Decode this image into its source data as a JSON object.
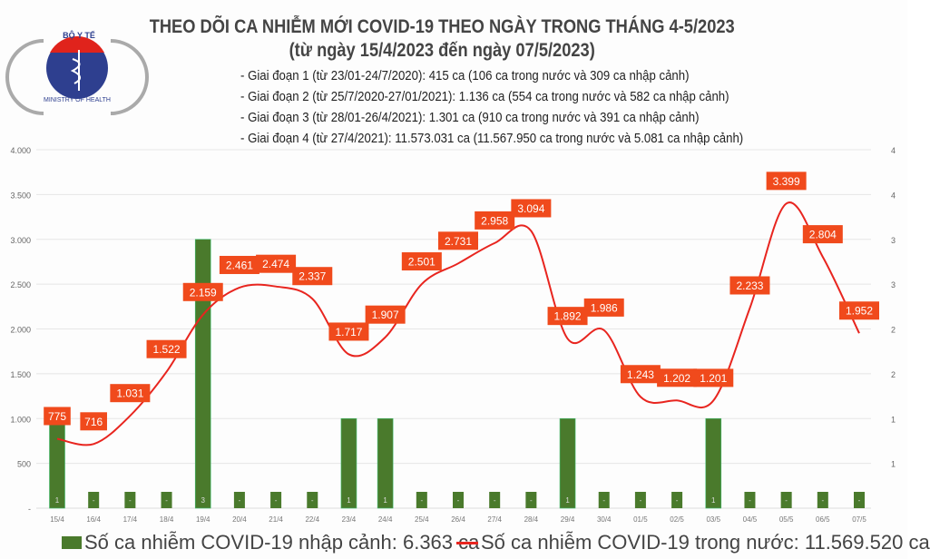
{
  "logo": {
    "top_text": "BỘ Y TẾ",
    "bottom_text": "MINISTRY OF HEALTH"
  },
  "title": "THEO DÕI CA NHIỄM MỚI COVID-19 THEO NGÀY TRONG THÁNG 4-5/2023",
  "subtitle": "(từ ngày 15/4/2023 đến ngày 07/5/2023)",
  "notes": [
    "- Giai đoạn 1 (từ 23/01-24/7/2020): 415 ca (106 ca trong nước và 309 ca nhập cảnh)",
    "- Giai đoạn 2 (từ 25/7/2020-27/01/2021): 1.136 ca (554 ca trong nước và 582 ca nhập cảnh)",
    "- Giai đoạn 3 (từ 28/01-26/4/2021): 1.301 ca (910 ca trong nước và 391 ca nhập cảnh)",
    "- Giai đoạn 4 (từ 27/4/2021): 11.573.031 ca (11.567.950 ca trong nước và 5.081 ca nhập cảnh)"
  ],
  "chart_data": {
    "type": "bar+line",
    "categories": [
      "15/4",
      "16/4",
      "17/4",
      "18/4",
      "19/4",
      "20/4",
      "21/4",
      "22/4",
      "23/4",
      "24/4",
      "25/4",
      "26/4",
      "27/4",
      "28/4",
      "29/4",
      "30/4",
      "01/5",
      "02/5",
      "03/5",
      "04/5",
      "05/5",
      "06/5",
      "07/5"
    ],
    "series": [
      {
        "name": "Số ca nhiễm COVID-19 nhập cảnh: 6.363 ca",
        "type": "bar",
        "axis": "right",
        "color": "#4a7a2c",
        "values": [
          1,
          0,
          0,
          0,
          3,
          0,
          0,
          0,
          1,
          1,
          0,
          0,
          0,
          0,
          1,
          0,
          0,
          0,
          1,
          0,
          0,
          0,
          0
        ],
        "labels": [
          "1",
          "-",
          "-",
          "-",
          "3",
          "-",
          "-",
          "-",
          "1",
          "1",
          "-",
          "-",
          "-",
          "-",
          "1",
          "-",
          "-",
          "-",
          "1",
          "-",
          "-",
          "-",
          "-"
        ]
      },
      {
        "name": "Số ca nhiễm COVID-19 trong nước: 11.569.520 ca",
        "type": "line",
        "axis": "left",
        "color": "#e8251f",
        "values": [
          775,
          716,
          1031,
          1522,
          2159,
          2461,
          2474,
          2337,
          1717,
          1907,
          2501,
          2731,
          2958,
          3094,
          1892,
          1986,
          1243,
          1202,
          1201,
          2233,
          3399,
          2804,
          1952
        ],
        "labels": [
          "775",
          "716",
          "1.031",
          "1.522",
          "2.159",
          "2.461",
          "2.474",
          "2.337",
          "1.717",
          "1.907",
          "2.501",
          "2.731",
          "2.958",
          "3.094",
          "1.892",
          "1.986",
          "1.243",
          "1.202",
          "1.201",
          "2.233",
          "3.399",
          "2.804",
          "1.952"
        ]
      }
    ],
    "y_left": {
      "range": [
        0,
        4000
      ],
      "ticks": [
        "-",
        "500",
        "1.000",
        "1.500",
        "2.000",
        "2.500",
        "3.000",
        "3.500",
        "4.000"
      ]
    },
    "y_right": {
      "range": [
        0,
        4
      ],
      "ticks": [
        "1",
        "1",
        "2",
        "2",
        "3",
        "3",
        "4",
        "4"
      ]
    },
    "grid": true,
    "legend": "bottom",
    "label_color": "#f04a1c"
  }
}
